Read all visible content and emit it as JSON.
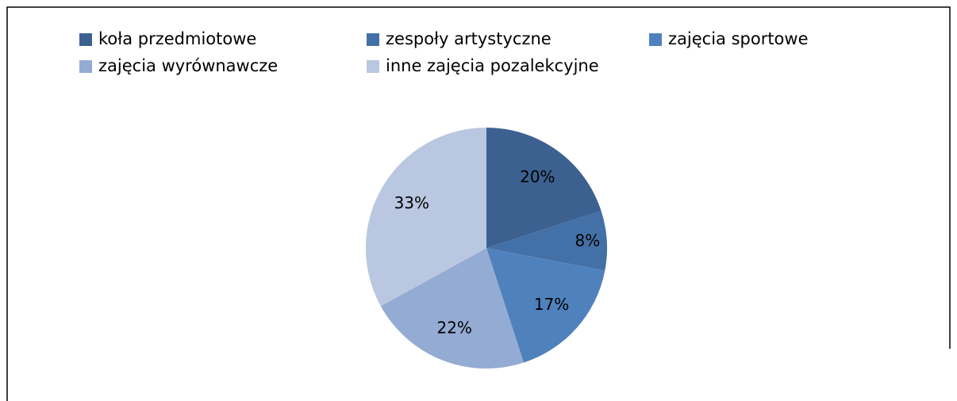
{
  "chart_data": {
    "type": "pie",
    "categories": [
      "koła przedmiotowe",
      "zespoły artystyczne",
      "zajęcia sportowe",
      "zajęcia wyrównawcze",
      "inne zajęcia pozalekcyjne"
    ],
    "values": [
      20,
      8,
      17,
      22,
      33
    ],
    "value_labels": [
      "20%",
      "8%",
      "17%",
      "22%",
      "33%"
    ],
    "colors": [
      "#3c6190",
      "#4470a8",
      "#4f81bd",
      "#94abd3",
      "#b9c7e0"
    ],
    "legend": "top"
  }
}
